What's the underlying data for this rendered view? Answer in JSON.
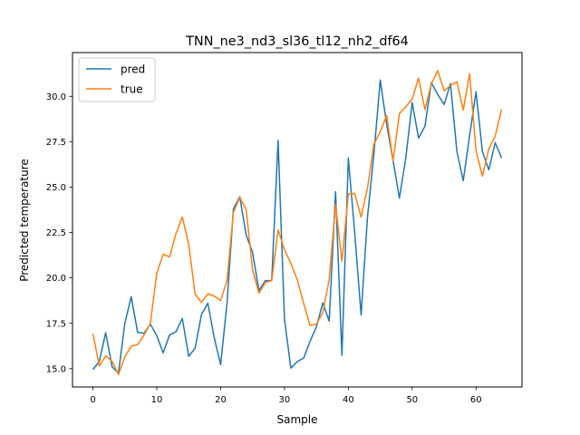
{
  "chart_data": {
    "type": "line",
    "title": "TNN_ne3_nd3_sl36_tl12_nh2_df64",
    "xlabel": "Sample",
    "ylabel": "Predicted temperature",
    "xlim": [
      -3.2,
      67.2
    ],
    "ylim": [
      13.99,
      32.41
    ],
    "xticks": [
      0,
      10,
      20,
      30,
      40,
      50,
      60
    ],
    "yticks": [
      15.0,
      17.5,
      20.0,
      22.5,
      25.0,
      27.5,
      30.0
    ],
    "xtick_labels": [
      "0",
      "10",
      "20",
      "30",
      "40",
      "50",
      "60"
    ],
    "ytick_labels": [
      "15.0",
      "17.5",
      "20.0",
      "22.5",
      "25.0",
      "27.5",
      "30.0"
    ],
    "grid": false,
    "legend_position": "upper-left",
    "series": [
      {
        "name": "pred",
        "color": "#1f77b4",
        "x": [
          0,
          1,
          2,
          3,
          4,
          5,
          6,
          7,
          8,
          9,
          10,
          11,
          12,
          13,
          14,
          15,
          16,
          17,
          18,
          19,
          20,
          21,
          22,
          23,
          24,
          25,
          26,
          27,
          28,
          29,
          30,
          31,
          32,
          33,
          34,
          35,
          36,
          37,
          38,
          39,
          40,
          41,
          42,
          43,
          44,
          45,
          46,
          47,
          48,
          49,
          50,
          51,
          52,
          53,
          54,
          55,
          56,
          57,
          58,
          59,
          60,
          61,
          62,
          63,
          64
        ],
        "values": [
          14.95,
          15.4,
          16.98,
          15.1,
          14.75,
          17.5,
          18.96,
          17.0,
          16.95,
          17.45,
          16.82,
          15.87,
          16.85,
          17.03,
          17.77,
          15.68,
          16.12,
          17.98,
          18.6,
          16.7,
          15.22,
          18.6,
          23.8,
          24.47,
          22.35,
          21.4,
          19.3,
          19.85,
          19.85,
          27.57,
          17.72,
          15.03,
          15.38,
          15.58,
          16.5,
          17.3,
          18.62,
          17.62,
          24.75,
          15.73,
          26.6,
          22.5,
          17.95,
          23.35,
          26.8,
          30.9,
          28.45,
          26.48,
          24.4,
          26.6,
          29.65,
          27.7,
          28.35,
          30.75,
          30.1,
          29.55,
          30.7,
          26.97,
          25.35,
          27.85,
          30.25,
          26.95,
          25.95,
          27.45,
          26.6
        ]
      },
      {
        "name": "true",
        "color": "#ff7f0e",
        "x": [
          0,
          1,
          2,
          3,
          4,
          5,
          6,
          7,
          8,
          9,
          10,
          11,
          12,
          13,
          14,
          15,
          16,
          17,
          18,
          19,
          20,
          21,
          22,
          23,
          24,
          25,
          26,
          27,
          28,
          29,
          30,
          31,
          32,
          33,
          34,
          35,
          36,
          37,
          38,
          39,
          40,
          41,
          42,
          43,
          44,
          45,
          46,
          47,
          48,
          49,
          50,
          51,
          52,
          53,
          54,
          55,
          56,
          57,
          58,
          59,
          60,
          61,
          62,
          63,
          64
        ],
        "values": [
          16.92,
          15.15,
          15.7,
          15.4,
          14.68,
          15.65,
          16.24,
          16.32,
          16.85,
          17.5,
          20.25,
          21.3,
          21.15,
          22.43,
          23.35,
          21.85,
          19.1,
          18.65,
          19.12,
          19.0,
          18.75,
          19.85,
          23.6,
          24.44,
          23.75,
          20.45,
          19.15,
          19.75,
          19.85,
          22.65,
          21.55,
          20.8,
          19.9,
          18.6,
          17.38,
          17.45,
          18.08,
          19.9,
          24.05,
          20.9,
          24.62,
          24.65,
          23.35,
          24.95,
          27.35,
          28.05,
          28.95,
          26.45,
          29.05,
          29.42,
          29.85,
          31.0,
          29.27,
          30.68,
          31.42,
          30.3,
          30.6,
          30.8,
          29.25,
          31.25,
          27.0,
          25.6,
          27.1,
          27.8,
          29.28
        ]
      }
    ]
  }
}
